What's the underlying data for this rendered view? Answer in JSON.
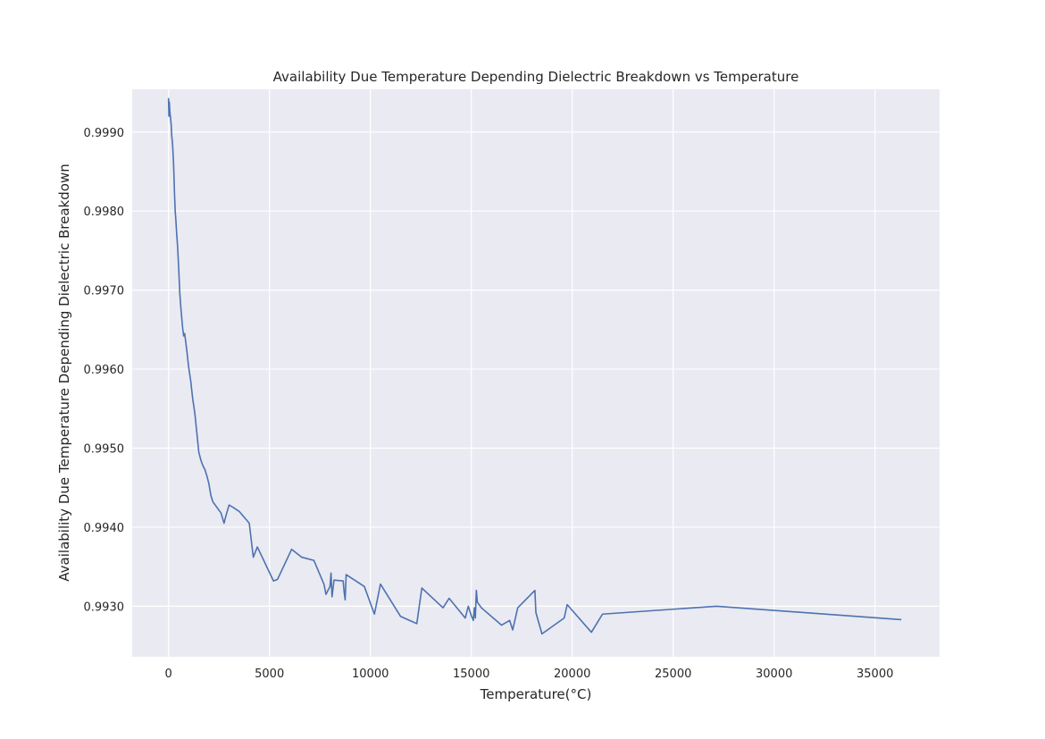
{
  "chart_data": {
    "type": "line",
    "title": "Availability Due Temperature Depending Dielectric Breakdown vs Temperature",
    "xlabel": "Temperature(°C)",
    "ylabel": "Availability Due Temperature Depending Dielectric Breakdown",
    "xlim": [
      -1800,
      38200
    ],
    "ylim": [
      0.99236,
      0.99954
    ],
    "xticks": [
      0,
      5000,
      10000,
      15000,
      20000,
      25000,
      30000,
      35000
    ],
    "xtick_labels": [
      "0",
      "5000",
      "10000",
      "15000",
      "20000",
      "25000",
      "30000",
      "35000"
    ],
    "yticks": [
      0.993,
      0.994,
      0.995,
      0.996,
      0.997,
      0.998,
      0.999
    ],
    "ytick_labels": [
      "0.9930",
      "0.9940",
      "0.9950",
      "0.9960",
      "0.9970",
      "0.9980",
      "0.9990"
    ],
    "grid": true,
    "line_color": "#4c72b0",
    "series": [
      {
        "x": [
          0,
          20,
          40,
          60,
          80,
          100,
          130,
          160,
          200,
          250,
          300,
          330,
          360,
          400,
          450,
          500,
          560,
          620,
          700,
          750,
          800,
          900,
          1000,
          1100,
          1200,
          1300,
          1400,
          1500,
          1600,
          1700,
          1800,
          1900,
          2000,
          2100,
          2200,
          2400,
          2600,
          2750,
          2850,
          3000,
          3200,
          3500,
          4000,
          4200,
          4400,
          5200,
          5400,
          6100,
          6600,
          7200,
          7700,
          7800,
          8000,
          8050,
          8100,
          8200,
          8650,
          8700,
          8750,
          8800,
          9700,
          10200,
          10500,
          11500,
          12300,
          12550,
          13600,
          13900,
          14700,
          14850,
          15000,
          15100,
          15150,
          15200,
          15250,
          15300,
          15500,
          16500,
          16900,
          17050,
          17300,
          18150,
          18200,
          18500,
          19600,
          19750,
          20950,
          21500,
          27150,
          36300
        ],
        "y": [
          0.99943,
          0.9992,
          0.99938,
          0.99928,
          0.99922,
          0.99918,
          0.9991,
          0.99895,
          0.99885,
          0.9986,
          0.9982,
          0.998,
          0.9979,
          0.99773,
          0.99755,
          0.9973,
          0.99695,
          0.99675,
          0.99652,
          0.99642,
          0.99645,
          0.99625,
          0.99602,
          0.99585,
          0.99562,
          0.99545,
          0.9952,
          0.99495,
          0.99485,
          0.99478,
          0.99473,
          0.99465,
          0.99455,
          0.9944,
          0.99432,
          0.99425,
          0.99418,
          0.99405,
          0.99415,
          0.99428,
          0.99425,
          0.9942,
          0.99405,
          0.99362,
          0.99375,
          0.99332,
          0.99334,
          0.99372,
          0.99362,
          0.99358,
          0.99328,
          0.99315,
          0.99325,
          0.99342,
          0.99312,
          0.99333,
          0.99332,
          0.99318,
          0.99308,
          0.9934,
          0.99325,
          0.9929,
          0.99328,
          0.99287,
          0.99278,
          0.99323,
          0.99298,
          0.9931,
          0.99285,
          0.993,
          0.99288,
          0.99282,
          0.99298,
          0.99285,
          0.9932,
          0.99305,
          0.99298,
          0.99276,
          0.99282,
          0.9927,
          0.99298,
          0.9932,
          0.99292,
          0.99265,
          0.99285,
          0.99302,
          0.99267,
          0.9929,
          0.993,
          0.99283
        ]
      }
    ]
  }
}
